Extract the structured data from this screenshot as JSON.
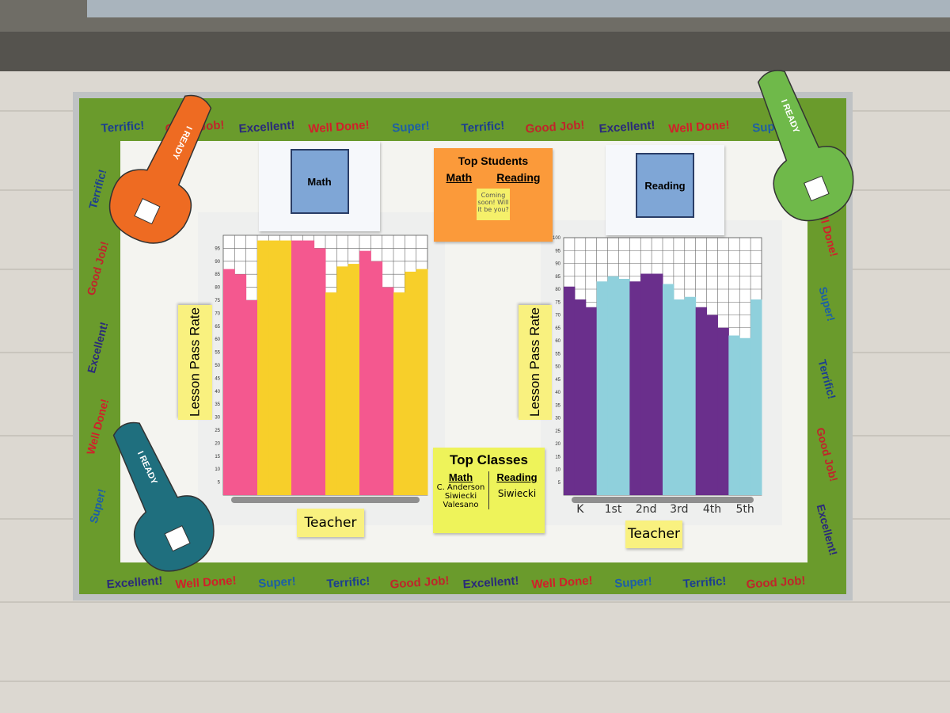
{
  "board": {
    "border_words": [
      "Terrific!",
      "Good Job!",
      "Excellent!",
      "Well Done!",
      "Super!"
    ],
    "foam_finger": "I READY",
    "top_students": {
      "title": "Top Students",
      "columns": [
        "Math",
        "Reading"
      ],
      "note": "Coming soon! Will it be you?"
    },
    "top_classes": {
      "title": "Top Classes",
      "columns": [
        "Math",
        "Reading"
      ],
      "math": [
        "C. Anderson",
        "Siwiecki",
        "Valesano"
      ],
      "reading": [
        "Siwiecki"
      ]
    }
  },
  "chart_data": [
    {
      "type": "bar",
      "title": "Math",
      "y_label": "Lesson Pass Rate",
      "x_label": "Teacher",
      "categories": [
        null,
        null,
        null,
        null,
        null,
        null,
        null,
        null,
        null,
        null,
        null,
        null,
        null,
        null,
        null,
        null,
        null,
        null
      ],
      "values": [
        87,
        85,
        75,
        98,
        98,
        98,
        98,
        98,
        95,
        78,
        88,
        89,
        94,
        90,
        80,
        78,
        86,
        87
      ],
      "colors": [
        "#f4588f",
        "#f4588f",
        "#f4588f",
        "#f7cf2a",
        "#f7cf2a",
        "#f7cf2a",
        "#f4588f",
        "#f4588f",
        "#f4588f",
        "#f7cf2a",
        "#f7cf2a",
        "#f7cf2a",
        "#f4588f",
        "#f4588f",
        "#f4588f",
        "#f7cf2a",
        "#f7cf2a",
        "#f7cf2a"
      ],
      "ylim": [
        0,
        100
      ],
      "yticks": [
        5,
        10,
        15,
        20,
        25,
        30,
        35,
        40,
        45,
        50,
        55,
        60,
        65,
        70,
        75,
        80,
        85,
        90,
        95
      ],
      "grid": true
    },
    {
      "type": "bar",
      "title": "Reading",
      "y_label": "Lesson Pass Rate",
      "x_label": "Teacher",
      "categories": [
        null,
        "K",
        null,
        null,
        "1st",
        null,
        null,
        "2nd",
        null,
        null,
        "3rd",
        null,
        null,
        "4th",
        null,
        null,
        "5th",
        null
      ],
      "values": [
        81,
        76,
        73,
        83,
        85,
        84,
        83,
        86,
        86,
        82,
        76,
        77,
        73,
        70,
        65,
        62,
        61,
        76
      ],
      "colors": [
        "#6a2f8c",
        "#6a2f8c",
        "#6a2f8c",
        "#8fd0dc",
        "#8fd0dc",
        "#8fd0dc",
        "#6a2f8c",
        "#6a2f8c",
        "#6a2f8c",
        "#8fd0dc",
        "#8fd0dc",
        "#8fd0dc",
        "#6a2f8c",
        "#6a2f8c",
        "#6a2f8c",
        "#8fd0dc",
        "#8fd0dc",
        "#8fd0dc"
      ],
      "ylim": [
        0,
        100
      ],
      "yticks": [
        5,
        10,
        15,
        20,
        25,
        30,
        35,
        40,
        45,
        50,
        55,
        60,
        65,
        70,
        75,
        80,
        85,
        90,
        95,
        100
      ],
      "grid": true
    }
  ]
}
